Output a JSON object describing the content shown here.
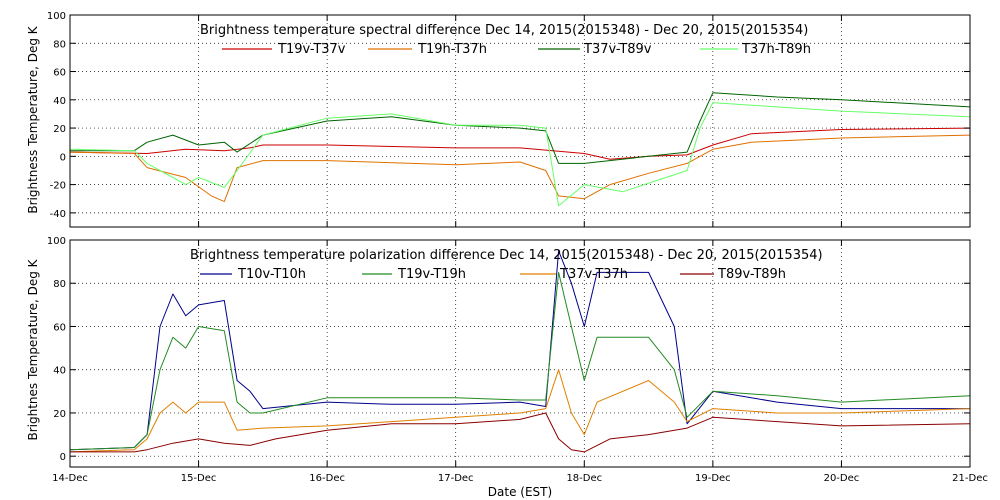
{
  "chart_data": [
    {
      "type": "line",
      "title": "Brightness temperature spectral difference     Dec 14, 2015(2015348) - Dec 20, 2015(2015354)",
      "ylabel": "Brightness Temperature, Deg K",
      "xlabel": "",
      "xlim": [
        0,
        7
      ],
      "ylim": [
        -50,
        100
      ],
      "yticks": [
        "-40",
        "-20",
        "0",
        "20",
        "40",
        "60",
        "80",
        "100"
      ],
      "ytick_values": [
        -40,
        -20,
        0,
        20,
        40,
        60,
        80,
        100
      ],
      "xticks": [
        "14-Dec",
        "15-Dec",
        "16-Dec",
        "17-Dec",
        "18-Dec",
        "19-Dec",
        "20-Dec",
        "21-Dec"
      ],
      "grid": true,
      "legend_position": "top",
      "series": [
        {
          "name": "T19v-T37v",
          "color": "#cc0000",
          "x": [
            0,
            0.6,
            0.9,
            1.2,
            1.4,
            1.5,
            2.0,
            3.0,
            3.5,
            4.0,
            4.2,
            4.5,
            4.8,
            5.0,
            5.3,
            6.0,
            7.0
          ],
          "values": [
            3,
            2,
            5,
            4,
            6,
            8,
            8,
            6,
            6,
            2,
            -2,
            0,
            1,
            8,
            16,
            19,
            20
          ]
        },
        {
          "name": "T19h-T37h",
          "color": "#e07000",
          "x": [
            0,
            0.5,
            0.6,
            0.9,
            1.1,
            1.2,
            1.3,
            1.5,
            2.0,
            3.0,
            3.5,
            3.7,
            3.8,
            4.0,
            4.2,
            4.5,
            4.8,
            5.0,
            5.3,
            6.0,
            7.0
          ],
          "values": [
            3,
            2,
            -8,
            -15,
            -28,
            -32,
            -8,
            -3,
            -3,
            -6,
            -4,
            -10,
            -28,
            -30,
            -20,
            -12,
            -5,
            5,
            10,
            13,
            15
          ]
        },
        {
          "name": "T37v-T89v",
          "color": "#006400",
          "x": [
            0,
            0.5,
            0.6,
            0.8,
            1.0,
            1.2,
            1.3,
            1.5,
            2.0,
            2.5,
            3.0,
            3.5,
            3.7,
            3.8,
            4.0,
            4.5,
            4.8,
            4.9,
            5.0,
            5.5,
            6.0,
            7.0
          ],
          "values": [
            4,
            4,
            10,
            15,
            8,
            10,
            3,
            15,
            25,
            28,
            22,
            20,
            18,
            -5,
            -5,
            0,
            3,
            25,
            45,
            42,
            40,
            35
          ]
        },
        {
          "name": "T37h-T89h",
          "color": "#66ff66",
          "x": [
            0,
            0.5,
            0.6,
            0.8,
            0.9,
            1.0,
            1.2,
            1.3,
            1.5,
            2.0,
            2.5,
            3.0,
            3.5,
            3.7,
            3.8,
            4.0,
            4.3,
            4.8,
            4.9,
            5.0,
            5.5,
            6.0,
            7.0
          ],
          "values": [
            5,
            4,
            -5,
            -15,
            -20,
            -15,
            -22,
            -10,
            15,
            27,
            30,
            22,
            22,
            20,
            -35,
            -20,
            -25,
            -10,
            20,
            38,
            35,
            32,
            28
          ]
        }
      ]
    },
    {
      "type": "line",
      "title": "Brightness temperature polarization difference     Dec 14, 2015(2015348) - Dec 20, 2015(2015354)",
      "ylabel": "Brightnes Temperature, Deg K",
      "xlabel": "Date (EST)",
      "xlim": [
        0,
        7
      ],
      "ylim": [
        -5,
        100
      ],
      "yticks": [
        "0",
        "20",
        "40",
        "60",
        "80",
        "100"
      ],
      "ytick_values": [
        0,
        20,
        40,
        60,
        80,
        100
      ],
      "xticks": [
        "14-Dec",
        "15-Dec",
        "16-Dec",
        "17-Dec",
        "18-Dec",
        "19-Dec",
        "20-Dec",
        "21-Dec"
      ],
      "grid": true,
      "legend_position": "top",
      "series": [
        {
          "name": "T10v-T10h",
          "color": "#00008b",
          "x": [
            0,
            0.5,
            0.6,
            0.7,
            0.8,
            0.9,
            1.0,
            1.2,
            1.3,
            1.4,
            1.5,
            2.0,
            2.5,
            3.0,
            3.5,
            3.7,
            3.8,
            3.9,
            4.0,
            4.1,
            4.5,
            4.7,
            4.8,
            5.0,
            5.5,
            6.0,
            7.0
          ],
          "values": [
            3,
            4,
            10,
            60,
            75,
            65,
            70,
            72,
            35,
            30,
            22,
            25,
            24,
            24,
            25,
            23,
            95,
            80,
            60,
            85,
            85,
            60,
            15,
            30,
            25,
            22,
            22
          ]
        },
        {
          "name": "T19v-T19h",
          "color": "#228b22",
          "x": [
            0,
            0.5,
            0.6,
            0.7,
            0.8,
            0.9,
            1.0,
            1.2,
            1.3,
            1.4,
            1.5,
            2.0,
            2.5,
            3.0,
            3.5,
            3.7,
            3.8,
            3.9,
            4.0,
            4.1,
            4.5,
            4.7,
            4.8,
            5.0,
            5.5,
            6.0,
            7.0
          ],
          "values": [
            3,
            4,
            10,
            40,
            55,
            50,
            60,
            58,
            25,
            20,
            20,
            27,
            27,
            27,
            26,
            26,
            85,
            60,
            35,
            55,
            55,
            40,
            18,
            30,
            28,
            25,
            28
          ]
        },
        {
          "name": "T37v-T37h",
          "color": "#e08000",
          "x": [
            0,
            0.5,
            0.6,
            0.7,
            0.8,
            0.9,
            1.0,
            1.2,
            1.3,
            1.5,
            2.0,
            2.5,
            3.0,
            3.5,
            3.7,
            3.8,
            3.9,
            4.0,
            4.1,
            4.5,
            4.7,
            4.8,
            5.0,
            5.5,
            6.0,
            7.0
          ],
          "values": [
            2,
            3,
            8,
            20,
            25,
            20,
            25,
            25,
            12,
            13,
            14,
            16,
            18,
            20,
            22,
            40,
            20,
            10,
            25,
            35,
            25,
            16,
            22,
            20,
            20,
            22
          ]
        },
        {
          "name": "T89v-T89h",
          "color": "#8b0000",
          "x": [
            0,
            0.5,
            0.6,
            0.8,
            1.0,
            1.2,
            1.4,
            1.6,
            2.0,
            2.5,
            3.0,
            3.5,
            3.7,
            3.8,
            3.9,
            4.0,
            4.2,
            4.5,
            4.8,
            5.0,
            5.5,
            6.0,
            7.0
          ],
          "values": [
            2,
            2,
            3,
            6,
            8,
            6,
            5,
            8,
            12,
            15,
            15,
            17,
            20,
            8,
            3,
            2,
            8,
            10,
            13,
            18,
            16,
            14,
            15
          ]
        }
      ]
    }
  ]
}
